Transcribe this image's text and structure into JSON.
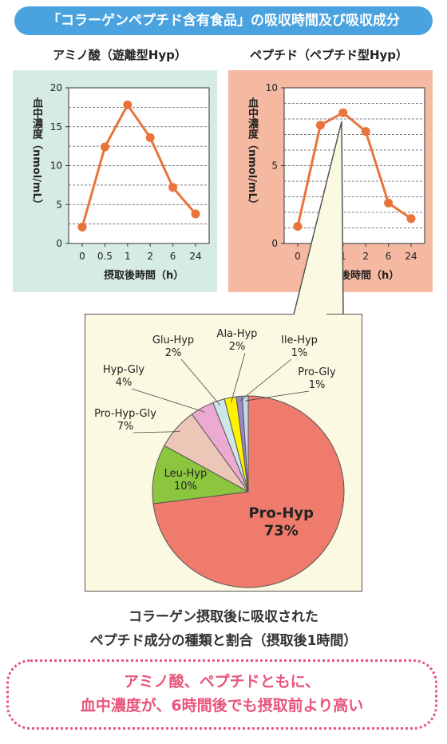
{
  "header": "「コラーゲンペプチド含有食品」の吸収時間及び吸収成分",
  "charts": {
    "left_title": "アミノ酸（遊離型Hyp）",
    "right_title": "ペプチド（ペプチド型Hyp）",
    "ylabel": "血中濃度（nmol/mL）",
    "xlabel": "摂取後時間（h）",
    "categories": [
      "0",
      "0.5",
      "1",
      "2",
      "6",
      "24"
    ]
  },
  "chart_data": [
    {
      "type": "line",
      "title": "アミノ酸（遊離型Hyp）",
      "xlabel": "摂取後時間（h）",
      "ylabel": "血中濃度（nmol/mL）",
      "categories": [
        "0",
        "0.5",
        "1",
        "2",
        "6",
        "24"
      ],
      "values": [
        2.1,
        12.4,
        17.8,
        13.6,
        7.2,
        3.8
      ],
      "ylim": [
        0,
        20
      ],
      "yticks": [
        0,
        5,
        10,
        15,
        20
      ],
      "grid": true,
      "color": "#e8743b"
    },
    {
      "type": "line",
      "title": "ペプチド（ペプチド型Hyp）",
      "xlabel": "摂取後時間（h）",
      "ylabel": "血中濃度（nmol/mL）",
      "categories": [
        "0",
        "0.5",
        "1",
        "2",
        "6",
        "24"
      ],
      "values": [
        1.1,
        7.6,
        8.4,
        7.2,
        2.6,
        1.6
      ],
      "ylim": [
        0,
        10
      ],
      "yticks": [
        0,
        5,
        10
      ],
      "grid": true,
      "color": "#e8743b"
    },
    {
      "type": "pie",
      "title": "",
      "labels": [
        "Pro-Hyp",
        "Leu-Hyp",
        "Pro-Hyp-Gly",
        "Hyp-Gly",
        "Glu-Hyp",
        "Ala-Hyp",
        "Ile-Hyp",
        "Pro-Gly"
      ],
      "value_labels": [
        "73%",
        "10%",
        "7%",
        "4%",
        "2%",
        "2%",
        "1%",
        "1%"
      ],
      "values": [
        73,
        10,
        7,
        4,
        2,
        2,
        1,
        1
      ],
      "colors": [
        "#ef7b6c",
        "#8cc63f",
        "#ecc7b8",
        "#ecaad2",
        "#cde6e8",
        "#fff200",
        "#9d87c4",
        "#c4d9ee"
      ]
    }
  ],
  "caption": {
    "line1": "コラーゲン摂取後に吸収された",
    "line2": "ペプチド成分の種類と割合（摂取後1時間）"
  },
  "note": {
    "line1": "アミノ酸、ペプチドともに、",
    "line2": "血中濃度が、6時間後でも摂取前より高い"
  }
}
